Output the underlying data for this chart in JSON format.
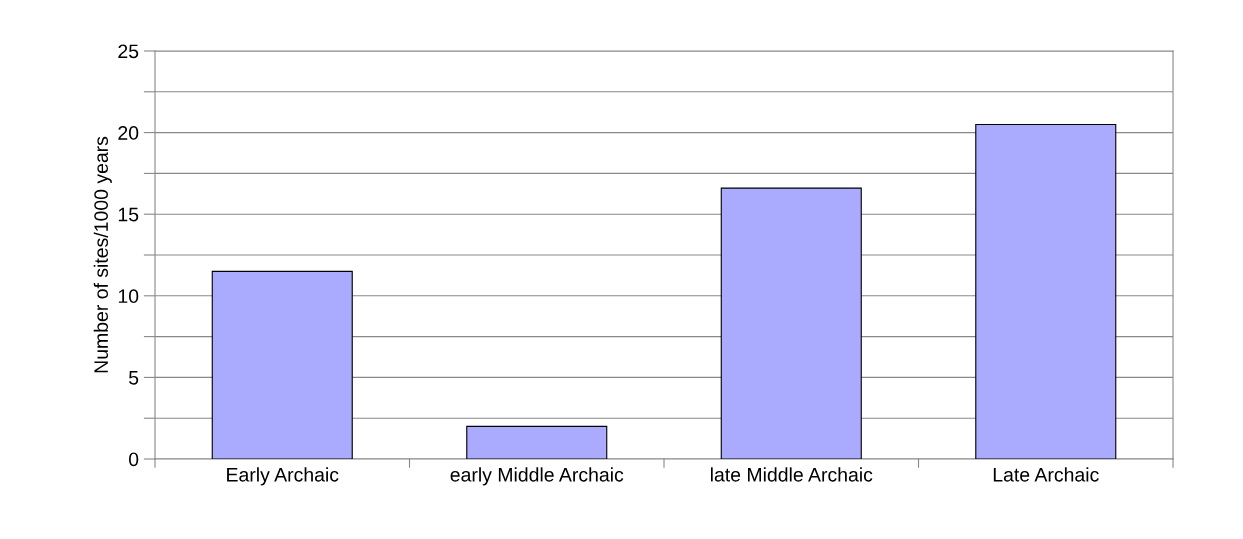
{
  "chart_data": {
    "type": "bar",
    "ylabel": "Number of sites/1000 years",
    "categories": [
      "Early Archaic",
      "early Middle Archaic",
      "late Middle Archaic",
      "Late Archaic"
    ],
    "values": [
      11.5,
      2,
      16.6,
      20.5
    ],
    "color": "#aaaaff",
    "ylim": [
      0,
      25
    ],
    "yticks": [
      0,
      {
        "value": 2.5,
        "label": null
      },
      5,
      {
        "value": 7.5,
        "label": null
      },
      10,
      {
        "value": 12.5,
        "label": null
      },
      15,
      {
        "value": 17.5,
        "label": null
      },
      20,
      {
        "value": 22.5,
        "label": null
      },
      25
    ],
    "grid": "y",
    "legend": false
  }
}
